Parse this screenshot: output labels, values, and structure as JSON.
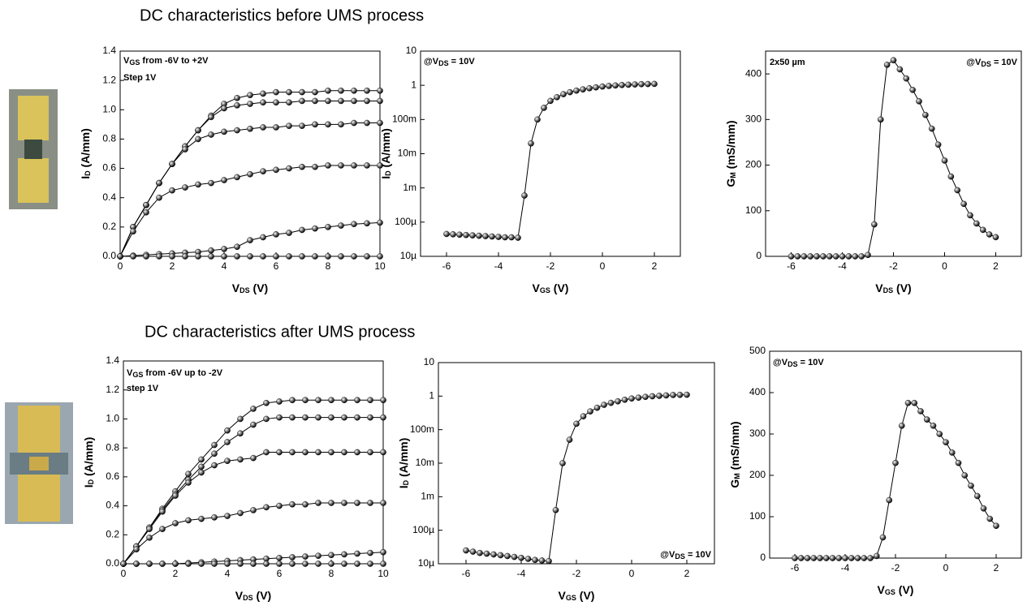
{
  "headings": [
    "DC characteristics before UMS process",
    "DC characteristics after UMS process"
  ],
  "chart_data": [
    {
      "type": "line",
      "xlabel": [
        "V",
        "DS",
        " (V)"
      ],
      "ylabel": [
        "I",
        "D",
        " (A/mm)"
      ],
      "annotations": [
        [
          "V",
          "GS",
          " from -6V to +2V"
        ],
        [
          "Step 1V"
        ]
      ],
      "xlim": [
        0,
        10
      ],
      "xticks": [
        0,
        2,
        4,
        6,
        8,
        10
      ],
      "ylim": [
        0,
        1.4
      ],
      "yticks": [
        {
          "value": 0,
          "label": "0.0"
        },
        {
          "value": 0.2,
          "label": "0.2"
        },
        {
          "value": 0.4,
          "label": "0.4"
        },
        {
          "value": 0.6,
          "label": "0.6"
        },
        {
          "value": 0.8,
          "label": "0.8"
        },
        {
          "value": 1,
          "label": "1.0"
        },
        {
          "value": 1.2,
          "label": "1.2"
        },
        {
          "value": 1.4,
          "label": "1.4"
        }
      ],
      "x": [
        0,
        0.5,
        1,
        1.5,
        2,
        2.5,
        3,
        3.5,
        4,
        4.5,
        5,
        5.5,
        6,
        6.5,
        7,
        7.5,
        8,
        8.5,
        9,
        9.5,
        10
      ],
      "series": [
        {
          "color": "#000000",
          "values": [
            0,
            0.2,
            0.35,
            0.5,
            0.63,
            0.75,
            0.86,
            0.96,
            1.04,
            1.08,
            1.1,
            1.11,
            1.12,
            1.12,
            1.12,
            1.12,
            1.13,
            1.13,
            1.13,
            1.13,
            1.13
          ]
        },
        {
          "color": "#000000",
          "values": [
            0,
            0.2,
            0.35,
            0.5,
            0.63,
            0.75,
            0.86,
            0.95,
            1.01,
            1.03,
            1.04,
            1.05,
            1.05,
            1.05,
            1.06,
            1.06,
            1.06,
            1.06,
            1.06,
            1.06,
            1.06
          ]
        },
        {
          "color": "#000000",
          "values": [
            0,
            0.2,
            0.35,
            0.5,
            0.63,
            0.73,
            0.8,
            0.83,
            0.85,
            0.86,
            0.87,
            0.88,
            0.88,
            0.89,
            0.89,
            0.9,
            0.9,
            0.9,
            0.91,
            0.91,
            0.91
          ]
        },
        {
          "color": "#000000",
          "values": [
            0,
            0.17,
            0.3,
            0.4,
            0.45,
            0.47,
            0.49,
            0.5,
            0.52,
            0.54,
            0.56,
            0.58,
            0.59,
            0.6,
            0.61,
            0.61,
            0.62,
            0.62,
            0.62,
            0.62,
            0.62
          ]
        },
        {
          "color": "#000000",
          "values": [
            0,
            0.005,
            0.01,
            0.015,
            0.02,
            0.025,
            0.03,
            0.04,
            0.05,
            0.065,
            0.11,
            0.13,
            0.15,
            0.16,
            0.18,
            0.19,
            0.2,
            0.21,
            0.22,
            0.225,
            0.23
          ]
        },
        {
          "color": "#000000",
          "values": [
            0,
            0,
            0,
            0,
            0,
            0,
            0,
            0,
            0,
            0,
            0,
            0,
            0,
            0,
            0,
            0,
            0,
            0,
            0,
            0,
            0
          ]
        }
      ]
    },
    {
      "type": "line",
      "log": true,
      "xlabel": [
        "V",
        "GS",
        " (V)"
      ],
      "ylabel": [
        "I",
        "D",
        " (A/mm)"
      ],
      "annotations": [
        [
          "@V",
          "DS",
          " = 10V"
        ]
      ],
      "xlim": [
        -7,
        3
      ],
      "xticks": [
        -6,
        -4,
        -2,
        0,
        2
      ],
      "ylim": [
        1e-05,
        10
      ],
      "yticks": [
        {
          "value": 1e-05,
          "label": "10µ"
        },
        {
          "value": 0.0001,
          "label": "100µ"
        },
        {
          "value": 0.001,
          "label": "1m"
        },
        {
          "value": 0.01,
          "label": "10m"
        },
        {
          "value": 0.1,
          "label": "100m"
        },
        1,
        10
      ],
      "x": [
        -6,
        -5.75,
        -5.5,
        -5.25,
        -5,
        -4.75,
        -4.5,
        -4.25,
        -4,
        -3.75,
        -3.5,
        -3.25,
        -3,
        -2.75,
        -2.5,
        -2.25,
        -2,
        -1.75,
        -1.5,
        -1.25,
        -1,
        -0.75,
        -0.5,
        -0.25,
        0,
        0.25,
        0.5,
        0.75,
        1,
        1.25,
        1.5,
        1.75,
        2
      ],
      "series": [
        {
          "color": "#000000",
          "values": [
            4.5e-05,
            4.4e-05,
            4.3e-05,
            4.2e-05,
            4.1e-05,
            4e-05,
            3.9e-05,
            3.8e-05,
            3.7e-05,
            3.6e-05,
            3.6e-05,
            3.5e-05,
            0.0006,
            0.02,
            0.1,
            0.22,
            0.35,
            0.45,
            0.55,
            0.63,
            0.7,
            0.76,
            0.82,
            0.87,
            0.92,
            0.96,
            0.99,
            1.02,
            1.04,
            1.06,
            1.08,
            1.09,
            1.1
          ]
        }
      ]
    },
    {
      "type": "line",
      "xlabel": [
        "V",
        "DS",
        " (V)"
      ],
      "ylabel": [
        "G",
        "M",
        " (mS/mm)"
      ],
      "annotations": [
        [
          "2x50 µm"
        ],
        [
          "@V",
          "DS",
          " = 10V"
        ]
      ],
      "xlim": [
        -7,
        3
      ],
      "xticks": [
        -6,
        -4,
        -2,
        0,
        2
      ],
      "ylim": [
        0,
        450
      ],
      "yticks": [
        0,
        100,
        200,
        300,
        400
      ],
      "x": [
        -6,
        -5.75,
        -5.5,
        -5.25,
        -5,
        -4.75,
        -4.5,
        -4.25,
        -4,
        -3.75,
        -3.5,
        -3.25,
        -3,
        -2.75,
        -2.5,
        -2.25,
        -2,
        -1.75,
        -1.5,
        -1.25,
        -1,
        -0.75,
        -0.5,
        -0.25,
        0,
        0.25,
        0.5,
        0.75,
        1,
        1.25,
        1.5,
        1.75,
        2
      ],
      "series": [
        {
          "color": "#000000",
          "values": [
            0,
            0,
            0,
            0,
            0,
            0,
            0,
            0,
            0,
            0,
            0,
            0,
            3,
            70,
            300,
            420,
            430,
            410,
            390,
            365,
            340,
            310,
            280,
            245,
            210,
            175,
            145,
            115,
            90,
            72,
            58,
            48,
            42
          ]
        }
      ]
    },
    {
      "type": "line",
      "xlabel": [
        "V",
        "DS",
        " (V)"
      ],
      "ylabel": [
        "I",
        "D",
        " (A/mm)"
      ],
      "annotations": [
        [
          "V",
          "GS",
          " from -6V up to -2V"
        ],
        [
          "step 1V"
        ]
      ],
      "xlim": [
        0,
        10
      ],
      "xticks": [
        0,
        2,
        4,
        6,
        8,
        10
      ],
      "ylim": [
        0,
        1.4
      ],
      "yticks": [
        {
          "value": 0,
          "label": "0.0"
        },
        {
          "value": 0.2,
          "label": "0.2"
        },
        {
          "value": 0.4,
          "label": "0.4"
        },
        {
          "value": 0.6,
          "label": "0.6"
        },
        {
          "value": 0.8,
          "label": "0.8"
        },
        {
          "value": 1,
          "label": "1.0"
        },
        {
          "value": 1.2,
          "label": "1.2"
        },
        {
          "value": 1.4,
          "label": "1.4"
        }
      ],
      "x": [
        0,
        0.5,
        1,
        1.5,
        2,
        2.5,
        3,
        3.5,
        4,
        4.5,
        5,
        5.5,
        6,
        6.5,
        7,
        7.5,
        8,
        8.5,
        9,
        9.5,
        10
      ],
      "series": [
        {
          "color": "#000000",
          "values": [
            0,
            0.12,
            0.25,
            0.38,
            0.5,
            0.62,
            0.72,
            0.82,
            0.92,
            1,
            1.07,
            1.11,
            1.12,
            1.13,
            1.13,
            1.13,
            1.13,
            1.13,
            1.13,
            1.13,
            1.13
          ]
        },
        {
          "color": "#000000",
          "values": [
            0,
            0.12,
            0.25,
            0.37,
            0.48,
            0.58,
            0.67,
            0.76,
            0.84,
            0.9,
            0.96,
            1,
            1.01,
            1.01,
            1.01,
            1.01,
            1.01,
            1.01,
            1.01,
            1.01,
            1.01
          ]
        },
        {
          "color": "#000000",
          "values": [
            0,
            0.12,
            0.24,
            0.36,
            0.47,
            0.56,
            0.63,
            0.68,
            0.71,
            0.72,
            0.73,
            0.77,
            0.77,
            0.77,
            0.77,
            0.77,
            0.77,
            0.77,
            0.77,
            0.77,
            0.77
          ]
        },
        {
          "color": "#000000",
          "values": [
            0,
            0.1,
            0.18,
            0.24,
            0.28,
            0.3,
            0.31,
            0.32,
            0.33,
            0.35,
            0.37,
            0.39,
            0.4,
            0.41,
            0.41,
            0.42,
            0.42,
            0.42,
            0.42,
            0.42,
            0.42
          ]
        },
        {
          "color": "#000000",
          "values": [
            0,
            0,
            0,
            0,
            0,
            0.005,
            0.01,
            0.015,
            0.02,
            0.025,
            0.03,
            0.035,
            0.04,
            0.045,
            0.05,
            0.055,
            0.06,
            0.065,
            0.07,
            0.075,
            0.08
          ]
        },
        {
          "color": "#000000",
          "values": [
            0,
            0,
            0,
            0,
            0,
            0,
            0,
            0,
            0,
            0,
            0,
            0,
            0,
            0,
            0,
            0,
            0,
            0,
            0,
            0,
            0
          ]
        }
      ]
    },
    {
      "type": "line",
      "log": true,
      "xlabel": [
        "V",
        "GS",
        " (V)"
      ],
      "ylabel": [
        "I",
        "D",
        " (A/mm)"
      ],
      "annotations": [
        [
          "@V",
          "DS",
          " = 10V"
        ]
      ],
      "xlim": [
        -7,
        3
      ],
      "xticks": [
        -6,
        -4,
        -2,
        0,
        2
      ],
      "ylim": [
        1e-05,
        10
      ],
      "yticks": [
        {
          "value": 1e-05,
          "label": "10µ"
        },
        {
          "value": 0.0001,
          "label": "100µ"
        },
        {
          "value": 0.001,
          "label": "1m"
        },
        {
          "value": 0.01,
          "label": "10m"
        },
        {
          "value": 0.1,
          "label": "100m"
        },
        1,
        10
      ],
      "x": [
        -6,
        -5.75,
        -5.5,
        -5.25,
        -5,
        -4.75,
        -4.5,
        -4.25,
        -4,
        -3.75,
        -3.5,
        -3.25,
        -3,
        -2.75,
        -2.5,
        -2.25,
        -2,
        -1.75,
        -1.5,
        -1.25,
        -1,
        -0.75,
        -0.5,
        -0.25,
        0,
        0.25,
        0.5,
        0.75,
        1,
        1.25,
        1.5,
        1.75,
        2
      ],
      "series": [
        {
          "color": "#000000",
          "values": [
            2.5e-05,
            2.3e-05,
            2.1e-05,
            2e-05,
            1.9e-05,
            1.8e-05,
            1.7e-05,
            1.6e-05,
            1.5e-05,
            1.4e-05,
            1.3e-05,
            1.25e-05,
            1.2e-05,
            0.0004,
            0.01,
            0.05,
            0.15,
            0.25,
            0.35,
            0.45,
            0.55,
            0.63,
            0.7,
            0.78,
            0.85,
            0.9,
            0.95,
            0.99,
            1.02,
            1.05,
            1.08,
            1.09,
            1.1
          ]
        }
      ]
    },
    {
      "type": "line",
      "xlabel": [
        "V",
        "GS",
        " (V)"
      ],
      "ylabel": [
        "G",
        "M",
        " (mS/mm)"
      ],
      "annotations": [
        [
          "@V",
          "DS",
          " = 10V"
        ]
      ],
      "xlim": [
        -7,
        3
      ],
      "xticks": [
        -6,
        -4,
        -2,
        0,
        2
      ],
      "ylim": [
        0,
        500
      ],
      "yticks": [
        0,
        100,
        200,
        300,
        400,
        500
      ],
      "x": [
        -6,
        -5.75,
        -5.5,
        -5.25,
        -5,
        -4.75,
        -4.5,
        -4.25,
        -4,
        -3.75,
        -3.5,
        -3.25,
        -3,
        -2.75,
        -2.5,
        -2.25,
        -2,
        -1.75,
        -1.5,
        -1.25,
        -1,
        -0.75,
        -0.5,
        -0.25,
        0,
        0.25,
        0.5,
        0.75,
        1,
        1.25,
        1.5,
        1.75,
        2
      ],
      "series": [
        {
          "color": "#000000",
          "values": [
            0,
            0,
            0,
            0,
            0,
            0,
            0,
            0,
            0,
            0,
            0,
            0,
            0,
            5,
            50,
            140,
            230,
            320,
            375,
            375,
            355,
            335,
            320,
            300,
            280,
            255,
            230,
            200,
            175,
            150,
            120,
            95,
            78
          ]
        }
      ]
    }
  ]
}
